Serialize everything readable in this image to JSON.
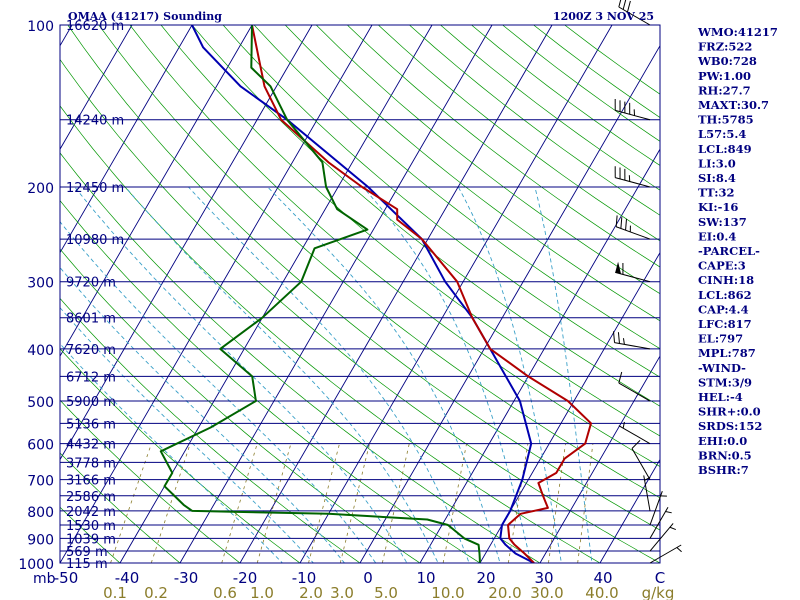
{
  "header": {
    "station": "OMAA (41217) Sounding",
    "time": "1200Z  3 NOV 25"
  },
  "chart_data": {
    "type": "skew-t",
    "pressure_ticks": [
      "100",
      "200",
      "300",
      "400",
      "500",
      "600",
      "700",
      "800",
      "900",
      "1000"
    ],
    "heights": [
      {
        "p": 100,
        "label": "16620 m"
      },
      {
        "p": 150,
        "label": "14240 m"
      },
      {
        "p": 200,
        "label": "12450 m"
      },
      {
        "p": 250,
        "label": "10980 m"
      },
      {
        "p": 300,
        "label": "9720 m"
      },
      {
        "p": 350,
        "label": "8601 m"
      },
      {
        "p": 400,
        "label": "7620 m"
      },
      {
        "p": 450,
        "label": "6712 m"
      },
      {
        "p": 500,
        "label": "5900 m"
      },
      {
        "p": 550,
        "label": "5136 m"
      },
      {
        "p": 600,
        "label": "4432 m"
      },
      {
        "p": 650,
        "label": "3778 m"
      },
      {
        "p": 700,
        "label": "3166 m"
      },
      {
        "p": 750,
        "label": "2586 m"
      },
      {
        "p": 800,
        "label": "2042 m"
      },
      {
        "p": 850,
        "label": "1530 m"
      },
      {
        "p": 900,
        "label": "1039 m"
      },
      {
        "p": 950,
        "label": "569 m"
      },
      {
        "p": 1000,
        "label": "115 m"
      }
    ],
    "temp_ticks": [
      "-50",
      "-40",
      "-30",
      "-20",
      "-10",
      "0",
      "10",
      "20",
      "30",
      "40",
      "C"
    ],
    "mixing_ratio_ticks": [
      "0.1",
      "0.2",
      "0.6",
      "1.0",
      "2.0",
      "3.0",
      "5.0",
      "10.0",
      "20.0",
      "30.0",
      "40.0",
      "g/kg"
    ],
    "pressure_unit": "mb",
    "temperature": {
      "name": "Temperature",
      "color": "#b00000",
      "points": [
        [
          1000,
          29
        ],
        [
          960,
          26.5
        ],
        [
          925,
          24
        ],
        [
          900,
          22.5
        ],
        [
          850,
          21
        ],
        [
          810,
          22
        ],
        [
          790,
          26
        ],
        [
          750,
          24
        ],
        [
          710,
          22
        ],
        [
          680,
          24
        ],
        [
          640,
          24
        ],
        [
          600,
          26
        ],
        [
          550,
          25
        ],
        [
          500,
          19
        ],
        [
          450,
          10
        ],
        [
          400,
          1
        ],
        [
          350,
          -5
        ],
        [
          300,
          -11
        ],
        [
          250,
          -21
        ],
        [
          230,
          -27
        ],
        [
          220,
          -28
        ],
        [
          200,
          -36
        ],
        [
          180,
          -44
        ],
        [
          150,
          -56
        ],
        [
          130,
          -62
        ],
        [
          100,
          -70
        ]
      ]
    },
    "dewpoint": {
      "name": "Dewpoint",
      "color": "#006400",
      "points": [
        [
          1000,
          20
        ],
        [
          960,
          19
        ],
        [
          925,
          18
        ],
        [
          900,
          15
        ],
        [
          850,
          11
        ],
        [
          830,
          7
        ],
        [
          810,
          -10
        ],
        [
          800,
          -33
        ],
        [
          780,
          -35
        ],
        [
          720,
          -40
        ],
        [
          680,
          -40
        ],
        [
          620,
          -44
        ],
        [
          560,
          -38
        ],
        [
          500,
          -33
        ],
        [
          450,
          -36
        ],
        [
          400,
          -44
        ],
        [
          350,
          -40
        ],
        [
          300,
          -37
        ],
        [
          260,
          -38
        ],
        [
          240,
          -31
        ],
        [
          220,
          -38
        ],
        [
          200,
          -42
        ],
        [
          180,
          -45
        ],
        [
          150,
          -55
        ],
        [
          130,
          -61
        ],
        [
          120,
          -66
        ],
        [
          100,
          -70
        ]
      ]
    },
    "parcel": {
      "name": "Parcel",
      "color": "#0000b0",
      "points": [
        [
          1000,
          29
        ],
        [
          960,
          25
        ],
        [
          925,
          22.5
        ],
        [
          900,
          21
        ],
        [
          850,
          20
        ],
        [
          800,
          20
        ],
        [
          700,
          19
        ],
        [
          600,
          17
        ],
        [
          500,
          11
        ],
        [
          400,
          1
        ],
        [
          350,
          -5
        ],
        [
          300,
          -13
        ],
        [
          250,
          -21
        ],
        [
          200,
          -35
        ],
        [
          150,
          -55
        ],
        [
          130,
          -66
        ],
        [
          110,
          -76
        ],
        [
          100,
          -80
        ]
      ]
    },
    "winds": [
      {
        "p": 100,
        "dir": 300,
        "spd": 30
      },
      {
        "p": 150,
        "dir": 285,
        "spd": 45
      },
      {
        "p": 200,
        "dir": 285,
        "spd": 35
      },
      {
        "p": 250,
        "dir": 290,
        "spd": 35
      },
      {
        "p": 300,
        "dir": 285,
        "spd": 60
      },
      {
        "p": 400,
        "dir": 280,
        "spd": 25
      },
      {
        "p": 500,
        "dir": 300,
        "spd": 10
      },
      {
        "p": 600,
        "dir": 300,
        "spd": 5
      },
      {
        "p": 700,
        "dir": 330,
        "spd": 10
      },
      {
        "p": 800,
        "dir": 350,
        "spd": 5
      },
      {
        "p": 850,
        "dir": 20,
        "spd": 5
      },
      {
        "p": 900,
        "dir": 30,
        "spd": 5
      },
      {
        "p": 950,
        "dir": 40,
        "spd": 5
      },
      {
        "p": 1000,
        "dir": 60,
        "spd": 5
      }
    ],
    "grid": true
  },
  "indices": [
    "WMO:41217",
    "FRZ:522",
    "WB0:728",
    "PW:1.00",
    "RH:27.7",
    "MAXT:30.7",
    "TH:5785",
    "L57:5.4",
    "LCL:849",
    "LI:3.0",
    "SI:8.4",
    "TT:32",
    "KI:-16",
    "SW:137",
    "EI:0.4",
    "-PARCEL-",
    "CAPE:3",
    "CINH:18",
    "LCL:862",
    "CAP:4.4",
    "LFC:817",
    "EL:797",
    "MPL:787",
    "-WIND-",
    "STM:3/9",
    "HEL:-4",
    "SHR+:0.0",
    "SRDS:152",
    "EHI:0.0",
    "BRN:0.5",
    "BSHR:7"
  ],
  "colors": {
    "isobar": "#000080",
    "isotherm": "#000080",
    "dry_adiabat": "#009600",
    "moist_adiabat": "#3aa0c8",
    "mixing_ratio": "#8b7d2b",
    "text": "#000080"
  }
}
